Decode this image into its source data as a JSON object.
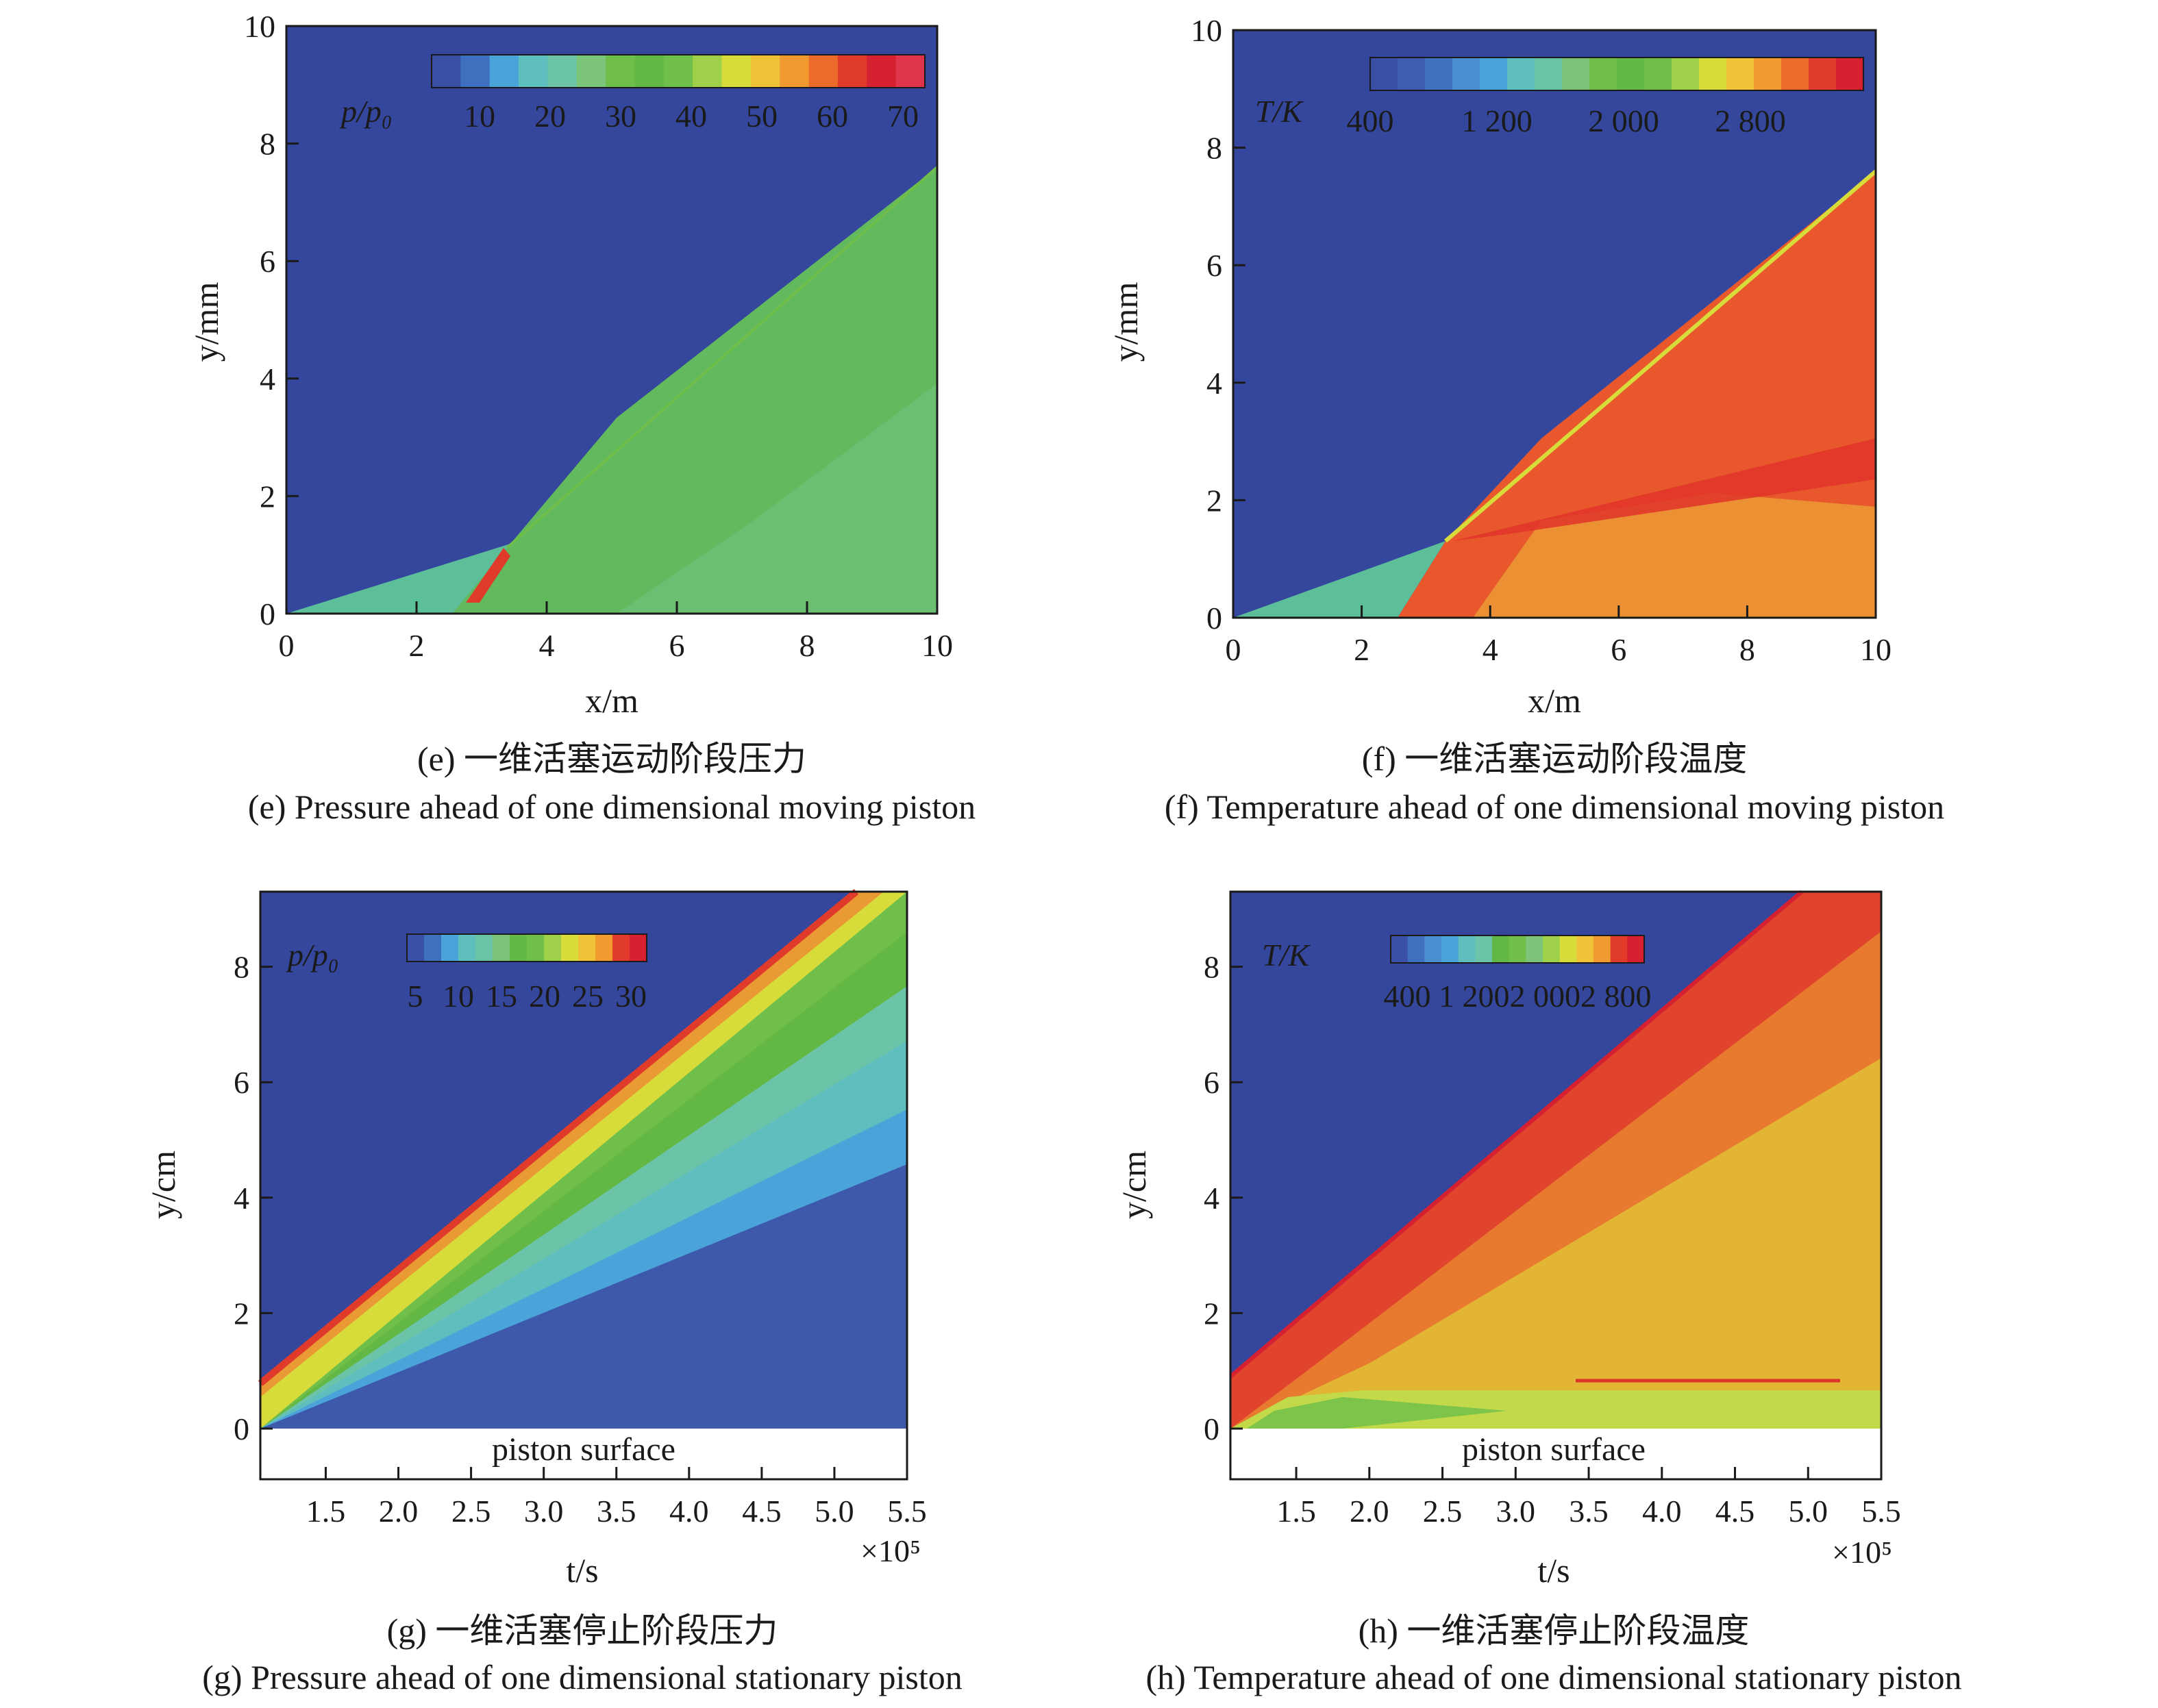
{
  "panels": [
    {
      "id": "e",
      "caption_cn": "(e) 一维活塞运动阶段压力",
      "caption_en": "(e) Pressure  ahead of one dimensional moving piston",
      "xlabel": "x/m",
      "ylabel": "y/mm",
      "x_ticks": [
        "0",
        "2",
        "4",
        "6",
        "8",
        "10"
      ],
      "y_ticks": [
        "0",
        "2",
        "4",
        "6",
        "8",
        "10"
      ],
      "colorbar": {
        "label": "p/p₀",
        "ticks": [
          "10",
          "20",
          "30",
          "40",
          "50",
          "60",
          "70"
        ],
        "colors": [
          "#3a4fa6",
          "#3f6fbf",
          "#4aa3d9",
          "#5fbfbf",
          "#6cc4a8",
          "#7cc47a",
          "#6fbe4a",
          "#63b845",
          "#70bf4a",
          "#9fd04a",
          "#d8dc3a",
          "#f0c23a",
          "#f09a30",
          "#ec6b2a",
          "#e03a2a",
          "#d42030",
          "#e0344c"
        ]
      }
    },
    {
      "id": "f",
      "caption_cn": "(f) 一维活塞运动阶段温度",
      "caption_en": "(f) Temperature ahead of  one dimensional moving piston",
      "xlabel": "x/m",
      "ylabel": "y/mm",
      "x_ticks": [
        "0",
        "2",
        "4",
        "6",
        "8",
        "10"
      ],
      "y_ticks": [
        "0",
        "2",
        "4",
        "6",
        "8",
        "10"
      ],
      "colorbar": {
        "label": "T/K",
        "ticks": [
          "400",
          "1 200",
          "2 000",
          "2 800"
        ],
        "colors": [
          "#3a4fa6",
          "#3d5cb2",
          "#3f6fbf",
          "#4a8fd0",
          "#4aa3d9",
          "#5fbfbf",
          "#6cc4a8",
          "#7cc47a",
          "#6fbe4a",
          "#63b845",
          "#70bf4a",
          "#9fd04a",
          "#d8dc3a",
          "#f0c23a",
          "#f09a30",
          "#ec6b2a",
          "#e03a2a",
          "#d42030"
        ]
      }
    },
    {
      "id": "g",
      "caption_cn": "(g) 一维活塞停止阶段压力",
      "caption_en": "(g) Pressure ahead of  one dimensional stationary piston",
      "xlabel": "t/s",
      "ylabel": "y/cm",
      "x_ticks": [
        "1.5",
        "2.0",
        "2.5",
        "3.0",
        "3.5",
        "4.0",
        "4.5",
        "5.0",
        "5.5"
      ],
      "y_ticks": [
        "0",
        "2",
        "4",
        "6",
        "8"
      ],
      "x_multiplier": "×10⁵",
      "surface_label": "piston surface",
      "colorbar": {
        "label": "p/p₀",
        "ticks": [
          "5",
          "10",
          "15",
          "20",
          "25",
          "30"
        ],
        "colors": [
          "#3a4fa6",
          "#3f6fbf",
          "#4aa3d9",
          "#5fbfbf",
          "#6cc4a8",
          "#7cc47a",
          "#63b845",
          "#70bf4a",
          "#9fd04a",
          "#d8dc3a",
          "#f0c23a",
          "#f09a30",
          "#e03a2a",
          "#d42030"
        ]
      }
    },
    {
      "id": "h",
      "caption_cn": "(h) 一维活塞停止阶段温度",
      "caption_en": "(h) Temperature ahead of  one dimensional stationary piston",
      "xlabel": "t/s",
      "ylabel": "y/cm",
      "x_ticks": [
        "1.5",
        "2.0",
        "2.5",
        "3.0",
        "3.5",
        "4.0",
        "4.5",
        "5.0",
        "5.5"
      ],
      "y_ticks": [
        "0",
        "2",
        "4",
        "6",
        "8"
      ],
      "x_multiplier": "×10⁵",
      "surface_label": "piston surface",
      "colorbar": {
        "label": "T/K",
        "ticks": [
          "400 1 2002 0002 800"
        ],
        "colors": [
          "#3a4fa6",
          "#3f6fbf",
          "#4a8fd0",
          "#4aa3d9",
          "#5fbfbf",
          "#6cc4a8",
          "#63b845",
          "#70bf4a",
          "#7cc47a",
          "#9fd04a",
          "#d8dc3a",
          "#f0c23a",
          "#f09a30",
          "#e03a2a",
          "#d42030"
        ]
      }
    }
  ],
  "chart_data": [
    {
      "type": "heatmap",
      "panel": "e",
      "xlabel": "x/m",
      "ylabel": "y/mm",
      "xlim": [
        0,
        10
      ],
      "ylim": [
        0,
        10
      ],
      "colorbar_label": "p/p₀",
      "colorbar_range": [
        0,
        75
      ]
    },
    {
      "type": "heatmap",
      "panel": "f",
      "xlabel": "x/m",
      "ylabel": "y/mm",
      "xlim": [
        0,
        10
      ],
      "ylim": [
        0,
        10
      ],
      "colorbar_label": "T/K",
      "colorbar_range": [
        400,
        3400
      ]
    },
    {
      "type": "heatmap",
      "panel": "g",
      "xlabel": "t/s",
      "ylabel": "y/cm",
      "xlim": [
        1.05,
        5.5
      ],
      "ylim": [
        0,
        9.3
      ],
      "x_multiplier": "×10⁵",
      "colorbar_label": "p/p₀",
      "colorbar_range": [
        2,
        32
      ]
    },
    {
      "type": "heatmap",
      "panel": "h",
      "xlabel": "t/s",
      "ylabel": "y/cm",
      "xlim": [
        1.05,
        5.5
      ],
      "ylim": [
        0,
        9.3
      ],
      "x_multiplier": "×10⁵",
      "colorbar_label": "T/K",
      "colorbar_range": [
        400,
        3400
      ]
    }
  ]
}
